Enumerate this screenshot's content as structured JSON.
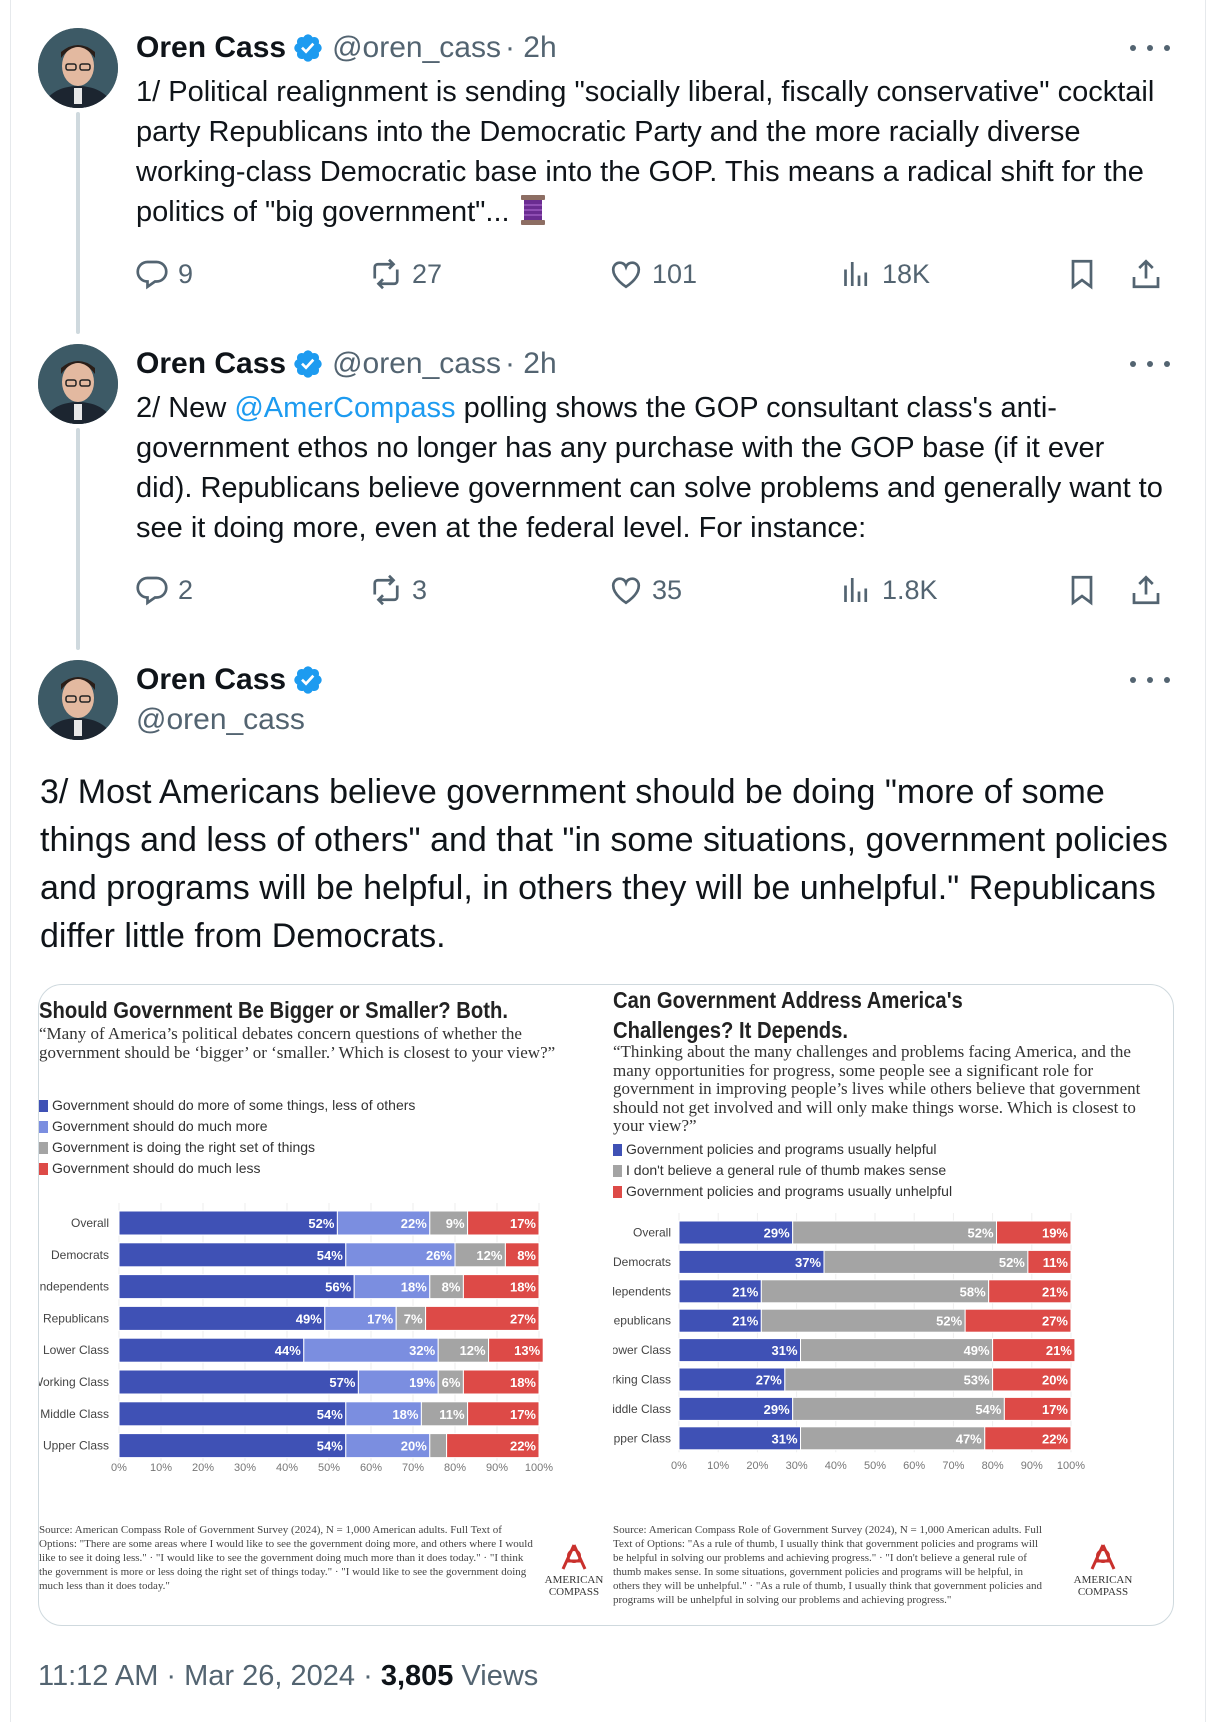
{
  "colors": {
    "blue_dark": "#3f51b5",
    "blue_light": "#7b8ee0",
    "gray": "#a4a4a4",
    "red": "#dd4a47",
    "link": "#1d9bf0",
    "muted": "#536471"
  },
  "tweets": [
    {
      "name": "Oren Cass",
      "handle": "@oren_cass",
      "time": "· 2h",
      "text": "1/ Political realignment is sending \"socially liberal, fiscally conservative\" cocktail party Republicans into the Democratic Party and the more racially diverse working-class Democratic base into the GOP. This means a radical shift for the politics of \"big government\"...",
      "emoji": "thread-spool-icon",
      "replies": "9",
      "reposts": "27",
      "likes": "101",
      "views": "18K"
    },
    {
      "name": "Oren Cass",
      "handle": "@oren_cass",
      "time": "· 2h",
      "text_before": "2/ New ",
      "mention": "@AmerCompass",
      "text_after": " polling shows the GOP consultant class's anti-government ethos no longer has any purchase with the GOP base (if it ever did). Republicans believe government can solve problems and generally want to see it doing more, even at the federal level. For instance:",
      "replies": "2",
      "reposts": "3",
      "likes": "35",
      "views": "1.8K"
    }
  ],
  "main_tweet": {
    "name": "Oren Cass",
    "handle": "@oren_cass",
    "text": "3/ Most Americans believe government should be doing \"more of some things and less of others\" and that \"in some situations, government policies and programs will be helpful, in others they will be unhelpful.\" Republicans differ little from Democrats.",
    "footer_time": "11:12 AM · Mar 26, 2024 · ",
    "footer_views_count": "3,805",
    "footer_views_label": " Views"
  },
  "chart_data": [
    {
      "type": "bar",
      "stacked": "horizontal-100",
      "title": "Should Government Be Bigger or Smaller? Both.",
      "question": "“Many of America’s political debates concern questions of whether the government should be ‘bigger’ or ‘smaller.’ Which is closest to your view?”",
      "categories": [
        "Overall",
        "Democrats",
        "Independents",
        "Republicans",
        "Lower Class",
        "Working Class",
        "Middle Class",
        "Upper Class"
      ],
      "series": [
        {
          "name": "Government should do more of some things, less of others",
          "values": [
            52,
            54,
            56,
            49,
            44,
            57,
            54,
            54
          ]
        },
        {
          "name": "Government should do much more",
          "values": [
            22,
            26,
            18,
            17,
            32,
            19,
            18,
            20
          ]
        },
        {
          "name": "Government is doing the right set of things",
          "values": [
            9,
            12,
            8,
            7,
            12,
            6,
            11,
            4
          ]
        },
        {
          "name": "Government should do much less",
          "values": [
            17,
            8,
            18,
            27,
            13,
            18,
            17,
            22
          ]
        }
      ],
      "labels": [
        [
          "52%",
          "22%",
          "9%",
          "17%"
        ],
        [
          "54%",
          "26%",
          "12%",
          "8%"
        ],
        [
          "56%",
          "18%",
          "8%",
          "18%"
        ],
        [
          "49%",
          "17%",
          "7%",
          "27%"
        ],
        [
          "44%",
          "32%",
          "12%",
          "13%"
        ],
        [
          "57%",
          "19%",
          "6%",
          "18%"
        ],
        [
          "54%",
          "18%",
          "11%",
          "17%"
        ],
        [
          "54%",
          "20%",
          "",
          "22%"
        ]
      ],
      "xticks": [
        "0%",
        "10%",
        "20%",
        "30%",
        "40%",
        "50%",
        "60%",
        "70%",
        "80%",
        "90%",
        "100%"
      ],
      "xlim": [
        0,
        100
      ],
      "source": "Source: American Compass Role of Government Survey (2024), N = 1,000 American adults. Full Text of Options: \"There are some areas where I would like to see the government doing more, and others where I would like to see it doing less.\" · \"I would like to see the government doing much more than it does today.\" · \"I think the government is more or less doing the right set of things today.\" · \"I would like to see the government doing much less than it does today.\"",
      "logo_line1": "AMERICAN",
      "logo_line2": "COMPASS"
    },
    {
      "type": "bar",
      "stacked": "horizontal-100",
      "title": "Can Government Address America's Challenges? It Depends.",
      "question": "“Thinking about the many challenges and problems facing America, and the many opportunities for progress, some people see a significant role for government in improving people’s lives while others believe that government should not get involved and will only make things worse. Which is closest to your view?”",
      "categories": [
        "Overall",
        "Democrats",
        "Independents",
        "Republicans",
        "Lower Class",
        "Working Class",
        "Middle Class",
        "Upper Class"
      ],
      "series": [
        {
          "name": "Government policies and programs usually helpful",
          "values": [
            29,
            37,
            21,
            21,
            31,
            27,
            29,
            31
          ]
        },
        {
          "name": "I don't believe a general rule of thumb makes sense",
          "values": [
            52,
            52,
            58,
            52,
            49,
            53,
            54,
            47
          ]
        },
        {
          "name": "Government policies and programs usually unhelpful",
          "values": [
            19,
            11,
            21,
            27,
            21,
            20,
            17,
            22
          ]
        }
      ],
      "labels": [
        [
          "29%",
          "52%",
          "19%"
        ],
        [
          "37%",
          "52%",
          "11%"
        ],
        [
          "21%",
          "58%",
          "21%"
        ],
        [
          "21%",
          "52%",
          "27%"
        ],
        [
          "31%",
          "49%",
          "21%"
        ],
        [
          "27%",
          "53%",
          "20%"
        ],
        [
          "29%",
          "54%",
          "17%"
        ],
        [
          "31%",
          "47%",
          "22%"
        ]
      ],
      "xticks": [
        "0%",
        "10%",
        "20%",
        "30%",
        "40%",
        "50%",
        "60%",
        "70%",
        "80%",
        "90%",
        "100%"
      ],
      "xlim": [
        0,
        100
      ],
      "source": "Source: American Compass Role of Government Survey (2024), N = 1,000 American adults. Full Text of Options: \"As a rule of thumb, I usually think that government policies and programs will be helpful in solving our problems and achieving progress.\" · \"I don't believe a general rule of thumb makes sense. In some situations, government policies and programs will be helpful, in others they will be unhelpful.\" · \"As a rule of thumb, I usually think that government policies and programs will be unhelpful in solving our problems and achieving progress.\"",
      "logo_line1": "AMERICAN",
      "logo_line2": "COMPASS"
    }
  ]
}
